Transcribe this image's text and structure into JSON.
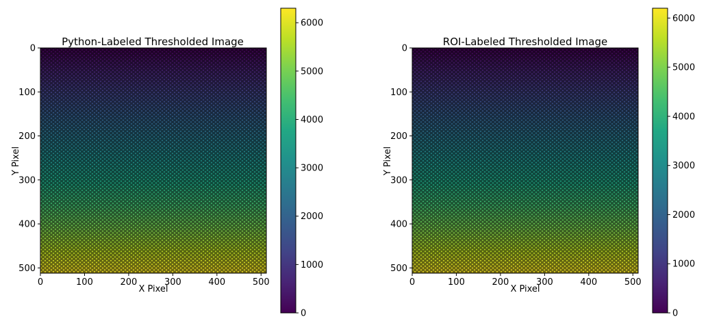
{
  "figure": {
    "colormap": "viridis"
  },
  "chart_data": [
    {
      "type": "heatmap",
      "title": "Python-Labeled Thresholded Image",
      "xlabel": "X Pixel",
      "ylabel": "Y Pixel",
      "xlim": [
        0,
        512
      ],
      "ylim": [
        512,
        0
      ],
      "x_ticks": [
        "0",
        "100",
        "200",
        "300",
        "400",
        "500"
      ],
      "y_ticks": [
        "0",
        "100",
        "200",
        "300",
        "400",
        "500"
      ],
      "colorbar": {
        "range": [
          0,
          6300
        ],
        "ticks": [
          "0",
          "1000",
          "2000",
          "3000",
          "4000",
          "5000",
          "6000"
        ]
      },
      "description_values": {
        "label_min": 0,
        "label_max": 6300,
        "gradient": "labels increase from top (0) to bottom (~6300)"
      }
    },
    {
      "type": "heatmap",
      "title": "ROI-Labeled Thresholded Image",
      "xlabel": "X Pixel",
      "ylabel": "Y Pixel",
      "xlim": [
        0,
        512
      ],
      "ylim": [
        512,
        0
      ],
      "x_ticks": [
        "0",
        "100",
        "200",
        "300",
        "400",
        "500"
      ],
      "y_ticks": [
        "0",
        "100",
        "200",
        "300",
        "400",
        "500"
      ],
      "colorbar": {
        "range": [
          0,
          6200
        ],
        "ticks": [
          "0",
          "1000",
          "2000",
          "3000",
          "4000",
          "5000",
          "6000"
        ]
      },
      "description_values": {
        "label_min": 0,
        "label_max": 6200,
        "gradient": "labels increase from top (0) to bottom (~6200)"
      }
    }
  ]
}
